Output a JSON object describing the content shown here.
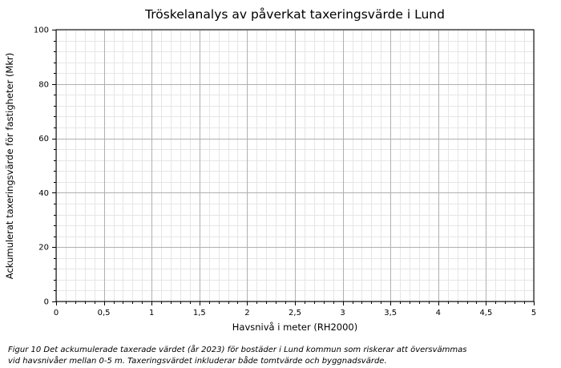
{
  "title": "Tröskelanalys av påverkat taxeringsvärde i Lund",
  "caption": {
    "line1": "Figur 10 Det ackumulerade taxerade värdet (år 2023) för bostäder i Lund kommun som riskerar att översvämmas",
    "line2": "vid havsnivåer mellan 0-5 m. Taxeringsvärdet inkluderar både tomtvärde och byggnadsvärde."
  },
  "chart_data": {
    "type": "line",
    "title": "Tröskelanalys av påverkat taxeringsvärde i Lund",
    "xlabel": "Havsnivå i meter (RH2000)",
    "ylabel": "Ackumulerat taxeringsvärde för fastigheter (Mkr)",
    "xlim": [
      0,
      5
    ],
    "ylim": [
      0,
      100
    ],
    "x_major_ticks": [
      0,
      0.5,
      1,
      1.5,
      2,
      2.5,
      3,
      3.5,
      4,
      4.5,
      5
    ],
    "x_tick_labels": [
      "0",
      "0,5",
      "1",
      "1,5",
      "2",
      "2,5",
      "3",
      "3,5",
      "4",
      "4,5",
      "5"
    ],
    "x_minor_step": 0.1,
    "y_major_ticks": [
      0,
      20,
      40,
      60,
      80,
      100
    ],
    "y_tick_labels": [
      "0",
      "20",
      "40",
      "60",
      "80",
      "100"
    ],
    "y_minor_step": 4,
    "series": [],
    "grid": "both",
    "legend": "none",
    "colors": {
      "major_grid": "#b0b0b0",
      "minor_grid": "#e6e6e6",
      "spine": "#000000",
      "tick": "#000000",
      "text": "#000000",
      "background": "#ffffff"
    }
  }
}
